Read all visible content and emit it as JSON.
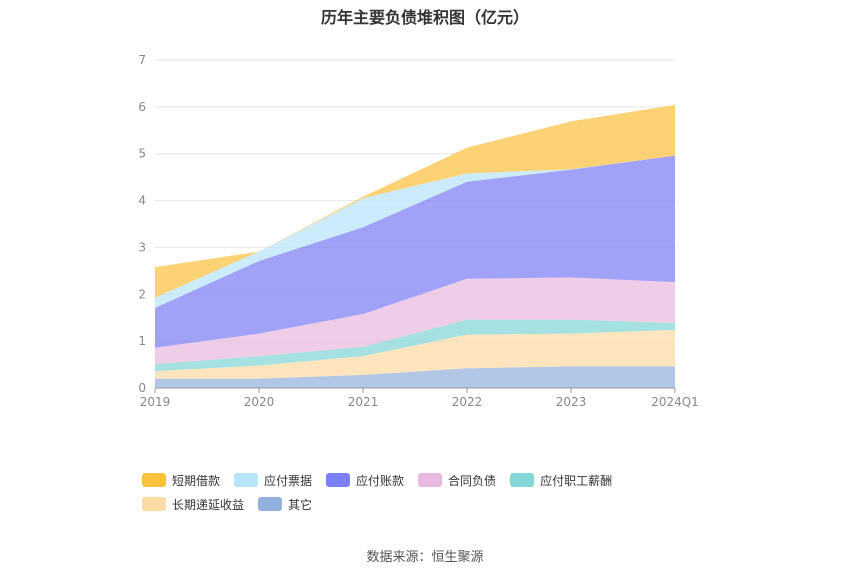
{
  "chart_data": {
    "type": "area",
    "stacked": true,
    "title": "历年主要负债堆积图（亿元）",
    "source": "数据来源：恒生聚源",
    "categories": [
      "2019",
      "2020",
      "2021",
      "2022",
      "2023",
      "2024Q1"
    ],
    "ylim": [
      0,
      7
    ],
    "yticks": [
      "0",
      "1",
      "2",
      "3",
      "4",
      "5",
      "6",
      "7"
    ],
    "grid": true,
    "legend_position": "bottom",
    "series": [
      {
        "name": "短期借款",
        "color": "#fcc03f",
        "values": [
          0.65,
          0.0,
          0.03,
          0.55,
          1.02,
          1.08
        ]
      },
      {
        "name": "应付票据",
        "color": "#b8e4fb",
        "values": [
          0.22,
          0.2,
          0.62,
          0.18,
          0.01,
          0.0
        ]
      },
      {
        "name": "应付账款",
        "color": "#7b7ef5",
        "values": [
          0.85,
          1.55,
          1.85,
          2.07,
          2.3,
          2.7
        ]
      },
      {
        "name": "合同负债",
        "color": "#e9b8de",
        "values": [
          0.35,
          0.48,
          0.7,
          0.87,
          0.9,
          0.87
        ]
      },
      {
        "name": "应付职工薪酬",
        "color": "#83d6d6",
        "values": [
          0.15,
          0.2,
          0.2,
          0.32,
          0.3,
          0.15
        ]
      },
      {
        "name": "长期递延收益",
        "color": "#fddba5",
        "values": [
          0.16,
          0.28,
          0.4,
          0.72,
          0.7,
          0.78
        ]
      },
      {
        "name": "其它",
        "color": "#94b1dd",
        "values": [
          0.2,
          0.2,
          0.28,
          0.42,
          0.46,
          0.46
        ]
      }
    ]
  }
}
